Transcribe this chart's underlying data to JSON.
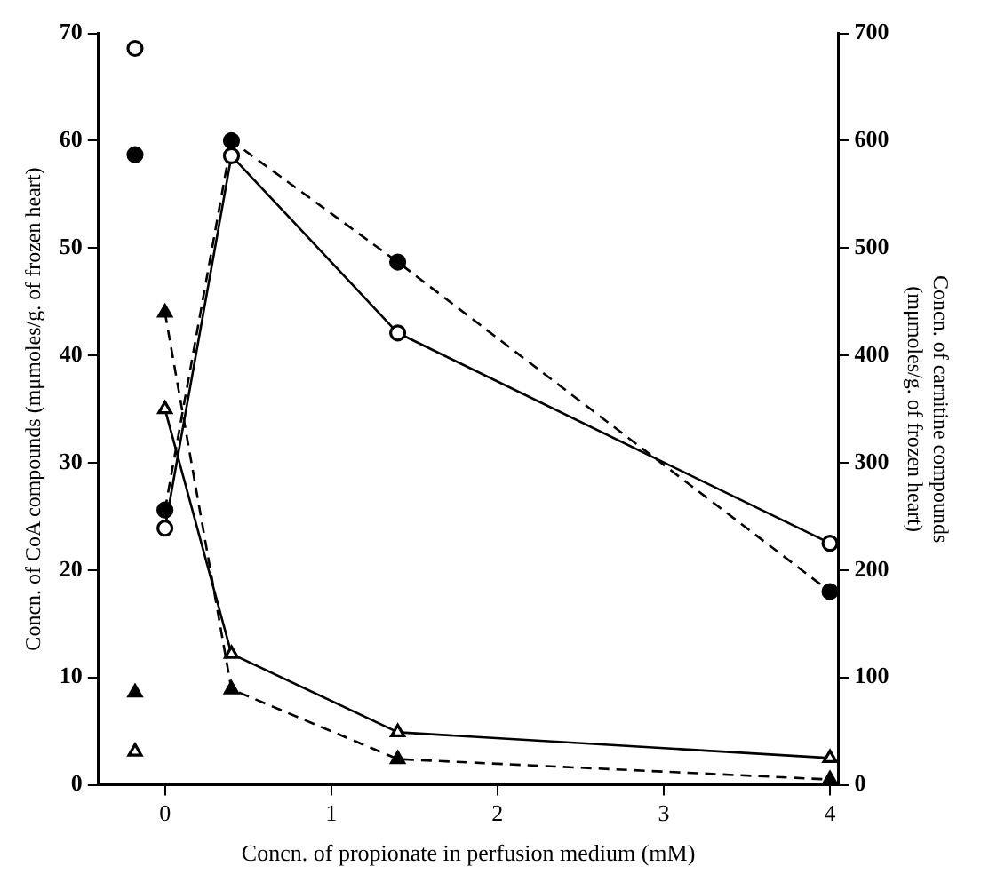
{
  "chart_data": {
    "type": "line",
    "xlabel": "Concn. of propionate in perfusion medium (mM)",
    "ylabel": "Concn. of CoA compounds (mμmoles/g. of frozen heart)",
    "y2label": "Concn. of carnitine compounds\n(mμmoles/g. of frozen heart)",
    "xlim": [
      -0.4,
      4.05
    ],
    "xticks": [
      0,
      1,
      2,
      3,
      4
    ],
    "ylim": [
      0,
      70
    ],
    "yticks": [
      0,
      10,
      20,
      30,
      40,
      50,
      60,
      70
    ],
    "y2lim": [
      0,
      700
    ],
    "y2ticks": [
      0,
      100,
      200,
      300,
      400,
      500,
      600,
      700
    ],
    "grid": false,
    "legend": false,
    "series": [
      {
        "axis": "y2",
        "color": "#ffffff",
        "marker": "circle",
        "line_style": "solid",
        "x": [
          0,
          0.4,
          1.4,
          4
        ],
        "values": [
          239,
          586,
          421,
          225
        ]
      },
      {
        "axis": "y2",
        "color": "#000000",
        "marker": "circle",
        "line_style": "dashed",
        "x": [
          0,
          0.4,
          1.4,
          4
        ],
        "values": [
          256,
          600,
          487,
          180
        ]
      },
      {
        "axis": "y",
        "color": "#ffffff",
        "marker": "triangle",
        "line_style": "solid",
        "x": [
          0,
          0.4,
          1.4,
          4
        ],
        "values": [
          35,
          12.2,
          4.9,
          2.5
        ]
      },
      {
        "axis": "y",
        "color": "#000000",
        "marker": "triangle",
        "line_style": "dashed",
        "x": [
          0,
          0.4,
          1.4,
          4
        ],
        "values": [
          44,
          8.9,
          2.4,
          0.5
        ]
      },
      {
        "type": "scatter",
        "axis": "y2",
        "color": "#ffffff",
        "marker": "circle",
        "x": [
          -0.18
        ],
        "values": [
          686
        ]
      },
      {
        "type": "scatter",
        "axis": "y2",
        "color": "#000000",
        "marker": "circle",
        "x": [
          -0.18
        ],
        "values": [
          587
        ]
      },
      {
        "type": "scatter",
        "axis": "y",
        "color": "#000000",
        "marker": "triangle",
        "x": [
          -0.18
        ],
        "values": [
          8.6
        ]
      },
      {
        "type": "scatter",
        "axis": "y",
        "color": "#ffffff",
        "marker": "triangle",
        "x": [
          -0.18
        ],
        "values": [
          3.1
        ]
      }
    ]
  }
}
